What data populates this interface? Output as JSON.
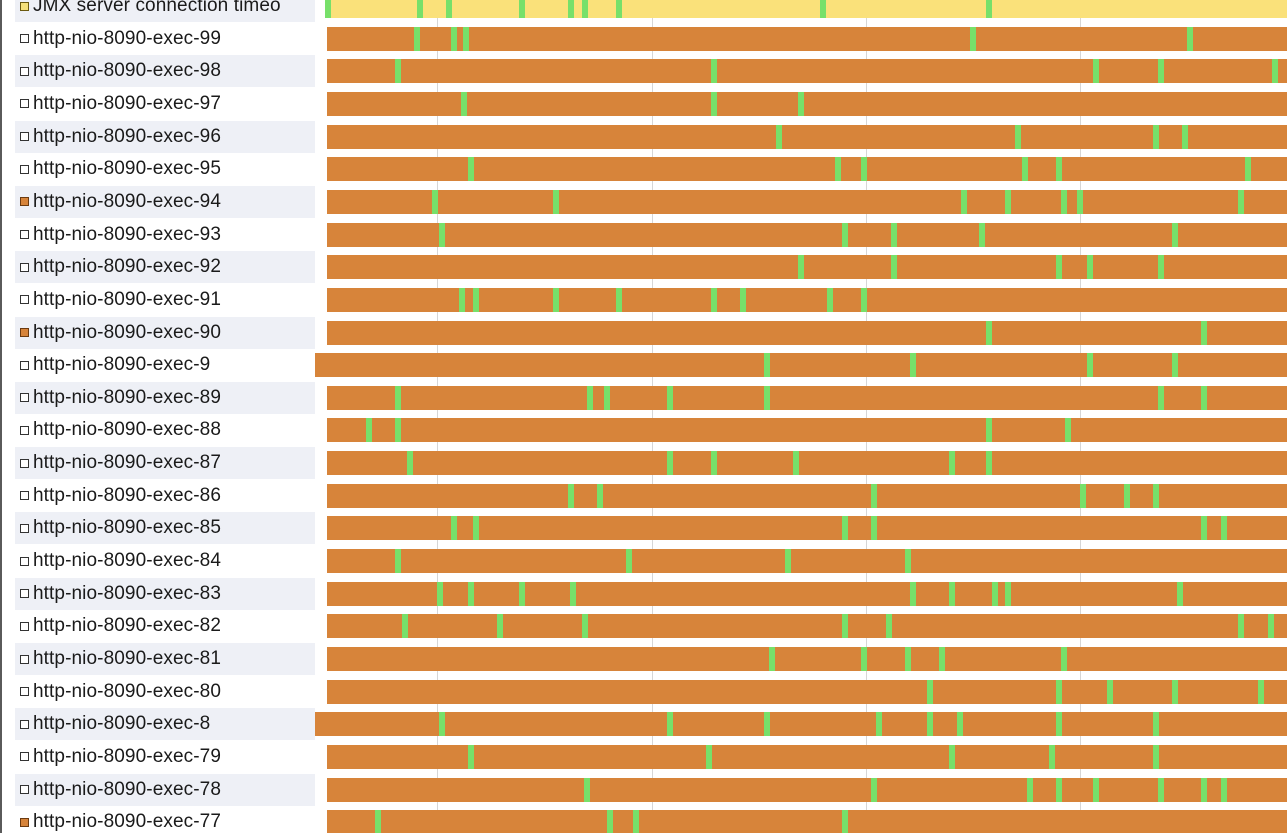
{
  "legend_colors": {
    "running": "#d7843a",
    "sleeping": "#77e06a",
    "waiting": "#fae17a",
    "row_alt_bg": "#eef0f6"
  },
  "threads": [
    {
      "name": "JMX server connection timeo",
      "state": "waiting",
      "bar_start": 0.01,
      "bar_state": "waiting",
      "marks": [
        0.01,
        0.105,
        0.135,
        0.21,
        0.26,
        0.275,
        0.31,
        0.52,
        0.69
      ]
    },
    {
      "name": "http-nio-8090-exec-99",
      "state": "none",
      "bar_start": 0.012,
      "marks": [
        0.102,
        0.14,
        0.152,
        0.674,
        0.897
      ]
    },
    {
      "name": "http-nio-8090-exec-98",
      "state": "none",
      "bar_start": 0.012,
      "marks": [
        0.082,
        0.407,
        0.8,
        0.867,
        0.985
      ]
    },
    {
      "name": "http-nio-8090-exec-97",
      "state": "none",
      "bar_start": 0.012,
      "marks": [
        0.15,
        0.407,
        0.497
      ]
    },
    {
      "name": "http-nio-8090-exec-96",
      "state": "none",
      "bar_start": 0.012,
      "marks": [
        0.474,
        0.72,
        0.862,
        0.892
      ]
    },
    {
      "name": "http-nio-8090-exec-95",
      "state": "none",
      "bar_start": 0.012,
      "marks": [
        0.157,
        0.535,
        0.562,
        0.727,
        0.762,
        0.957
      ]
    },
    {
      "name": "http-nio-8090-exec-94",
      "state": "running",
      "bar_start": 0.012,
      "marks": [
        0.12,
        0.245,
        0.665,
        0.71,
        0.768,
        0.784,
        0.95
      ]
    },
    {
      "name": "http-nio-8090-exec-93",
      "state": "none",
      "bar_start": 0.012,
      "marks": [
        0.128,
        0.542,
        0.593,
        0.683,
        0.882
      ]
    },
    {
      "name": "http-nio-8090-exec-92",
      "state": "none",
      "bar_start": 0.012,
      "marks": [
        0.497,
        0.593,
        0.762,
        0.794,
        0.867
      ]
    },
    {
      "name": "http-nio-8090-exec-91",
      "state": "none",
      "bar_start": 0.012,
      "marks": [
        0.148,
        0.163,
        0.245,
        0.31,
        0.407,
        0.437,
        0.527,
        0.562
      ]
    },
    {
      "name": "http-nio-8090-exec-90",
      "state": "running",
      "bar_start": 0.012,
      "marks": [
        0.69,
        0.912
      ]
    },
    {
      "name": "http-nio-8090-exec-9",
      "state": "none",
      "bar_start": 0.0,
      "marks": [
        0.462,
        0.612,
        0.794,
        0.882
      ]
    },
    {
      "name": "http-nio-8090-exec-89",
      "state": "none",
      "bar_start": 0.012,
      "marks": [
        0.082,
        0.28,
        0.297,
        0.362,
        0.462,
        0.867,
        0.912
      ]
    },
    {
      "name": "http-nio-8090-exec-88",
      "state": "none",
      "bar_start": 0.012,
      "marks": [
        0.052,
        0.082,
        0.69,
        0.772
      ]
    },
    {
      "name": "http-nio-8090-exec-87",
      "state": "none",
      "bar_start": 0.012,
      "marks": [
        0.095,
        0.362,
        0.407,
        0.492,
        0.652,
        0.69
      ]
    },
    {
      "name": "http-nio-8090-exec-86",
      "state": "none",
      "bar_start": 0.012,
      "marks": [
        0.26,
        0.29,
        0.572,
        0.787,
        0.832,
        0.862
      ]
    },
    {
      "name": "http-nio-8090-exec-85",
      "state": "none",
      "bar_start": 0.012,
      "marks": [
        0.14,
        0.163,
        0.542,
        0.572,
        0.912,
        0.932
      ]
    },
    {
      "name": "http-nio-8090-exec-84",
      "state": "none",
      "bar_start": 0.012,
      "marks": [
        0.082,
        0.32,
        0.484,
        0.607
      ]
    },
    {
      "name": "http-nio-8090-exec-83",
      "state": "none",
      "bar_start": 0.012,
      "marks": [
        0.126,
        0.157,
        0.21,
        0.262,
        0.612,
        0.652,
        0.697,
        0.71,
        0.887
      ]
    },
    {
      "name": "http-nio-8090-exec-82",
      "state": "none",
      "bar_start": 0.012,
      "marks": [
        0.09,
        0.187,
        0.275,
        0.542,
        0.587,
        0.95,
        0.98
      ]
    },
    {
      "name": "http-nio-8090-exec-81",
      "state": "none",
      "bar_start": 0.012,
      "marks": [
        0.467,
        0.562,
        0.607,
        0.642,
        0.767
      ]
    },
    {
      "name": "http-nio-8090-exec-80",
      "state": "none",
      "bar_start": 0.012,
      "marks": [
        0.63,
        0.762,
        0.815,
        0.882,
        0.97
      ]
    },
    {
      "name": "http-nio-8090-exec-8",
      "state": "none",
      "bar_start": 0.0,
      "marks": [
        0.128,
        0.362,
        0.462,
        0.577,
        0.63,
        0.66,
        0.762,
        0.862
      ]
    },
    {
      "name": "http-nio-8090-exec-79",
      "state": "none",
      "bar_start": 0.012,
      "marks": [
        0.157,
        0.402,
        0.652,
        0.755,
        0.862
      ]
    },
    {
      "name": "http-nio-8090-exec-78",
      "state": "none",
      "bar_start": 0.012,
      "marks": [
        0.277,
        0.572,
        0.732,
        0.762,
        0.8,
        0.867,
        0.912,
        0.932
      ]
    },
    {
      "name": "http-nio-8090-exec-77",
      "state": "running",
      "bar_start": 0.012,
      "marks": [
        0.062,
        0.3,
        0.327,
        0.542
      ]
    }
  ]
}
